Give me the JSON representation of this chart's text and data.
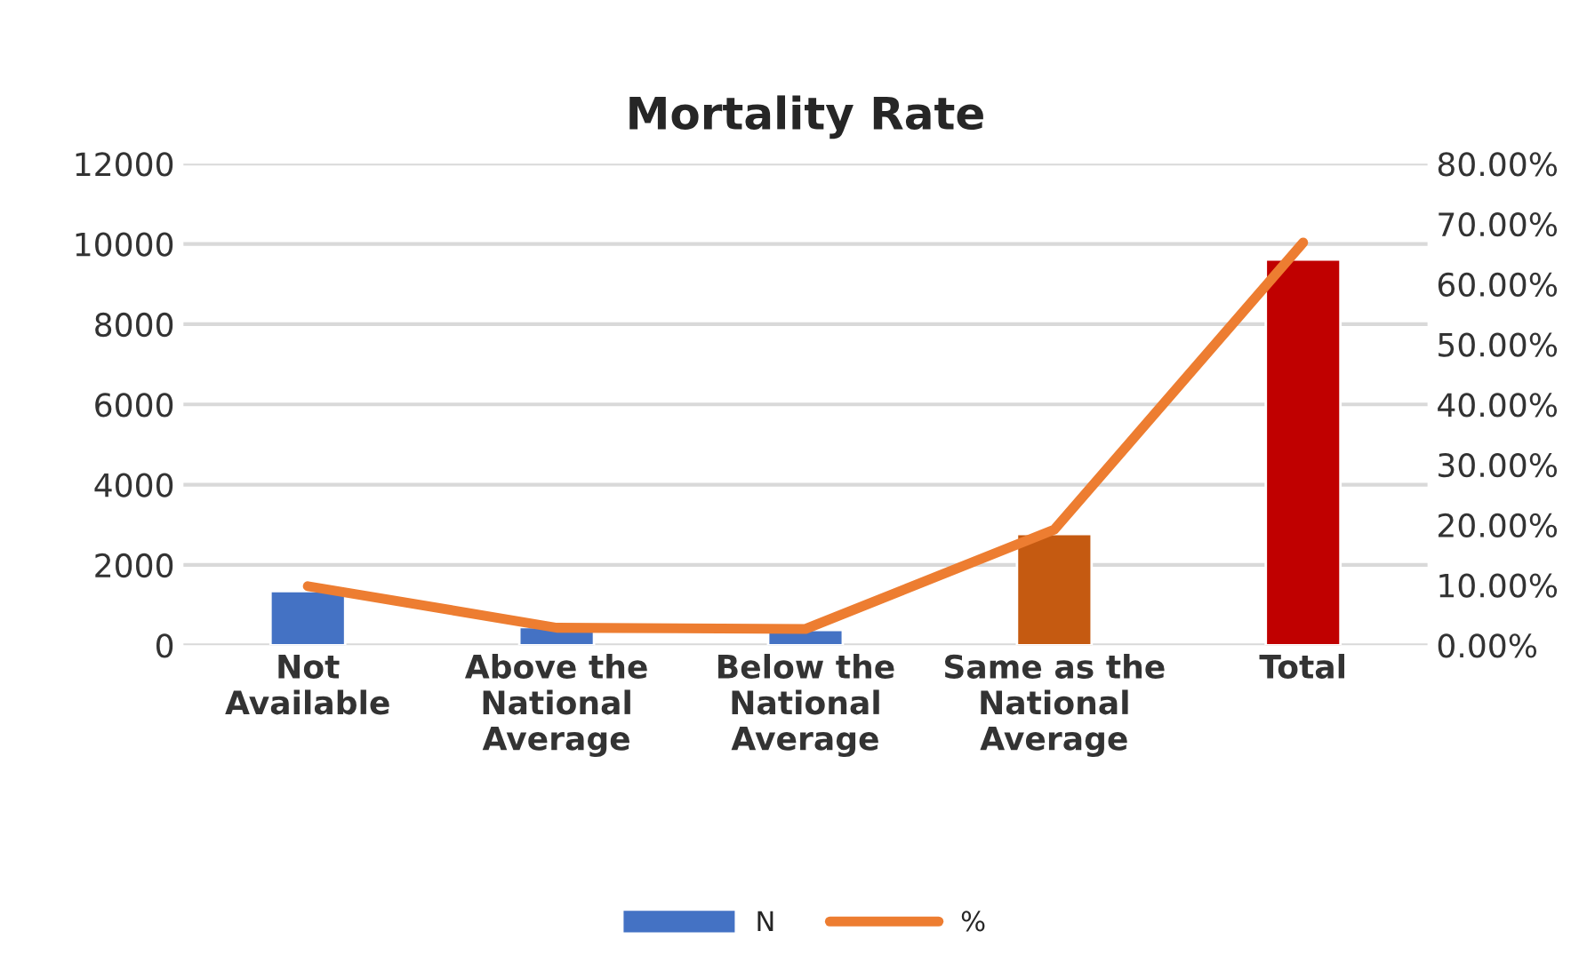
{
  "chart_data": {
    "type": "bar",
    "title": "Mortality Rate",
    "categories": [
      "Not\nAvailable",
      "Above the\nNational\nAverage",
      "Below the\nNational\nAverage",
      "Same as the\nNational\nAverage",
      "Total"
    ],
    "series": [
      {
        "name": "N",
        "color": "#4472c4",
        "colors": [
          "#4472c4",
          "#4472c4",
          "#4472c4",
          "#c55a11",
          "#c00000"
        ],
        "values": [
          1350,
          450,
          380,
          2770,
          9610
        ]
      },
      {
        "name": "%",
        "type": "line",
        "axis": "y2",
        "color": "#ed7d31",
        "values": [
          9.8,
          2.9,
          2.7,
          19.2,
          66.9
        ]
      }
    ],
    "ylim": [
      0,
      12000
    ],
    "yticks": [
      0,
      2000,
      4000,
      6000,
      8000,
      10000,
      12000
    ],
    "y2lim": [
      0,
      80
    ],
    "y2ticks": [
      {
        "value": 0,
        "label": "0.00%"
      },
      {
        "value": 10,
        "label": "10.00%"
      },
      {
        "value": 20,
        "label": "20.00%"
      },
      {
        "value": 30,
        "label": "30.00%"
      },
      {
        "value": 40,
        "label": "40.00%"
      },
      {
        "value": 50,
        "label": "50.00%"
      },
      {
        "value": 60,
        "label": "60.00%"
      },
      {
        "value": 70,
        "label": "70.00%"
      },
      {
        "value": 80,
        "label": "80.00%"
      }
    ],
    "grid": "y",
    "legend": "bottom",
    "marker": "none"
  }
}
